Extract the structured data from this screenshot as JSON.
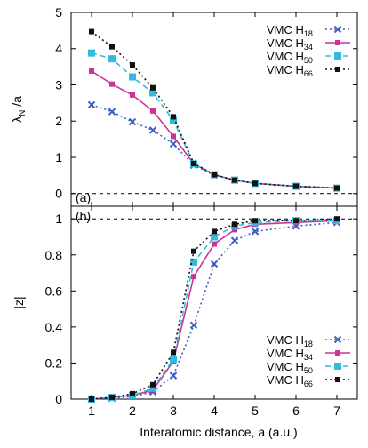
{
  "chart_data": [
    {
      "panel_label": "(a)",
      "type": "line",
      "ylabel_main": "λ",
      "ylabel_sub": "N",
      "ylabel_tail": " /a",
      "xlim": [
        0.5,
        7.5
      ],
      "ylim": [
        -0.35,
        5
      ],
      "yticks": [
        0,
        1,
        2,
        3,
        4,
        5
      ],
      "reference_line": 0,
      "legend_position": "top-right",
      "series": [
        {
          "name": "VMC H",
          "sub": "18",
          "color": "#3d5fc4",
          "marker": "x",
          "dash": "2,3",
          "x": [
            1,
            1.5,
            2,
            2.5,
            3,
            3.5,
            4,
            4.5,
            5,
            6,
            7
          ],
          "y": [
            2.45,
            2.26,
            1.98,
            1.75,
            1.37,
            0.78,
            0.51,
            0.37,
            0.28,
            0.2,
            0.15
          ]
        },
        {
          "name": "VMC H",
          "sub": "34",
          "color": "#cc3399",
          "marker": "square",
          "dash": "",
          "x": [
            1,
            1.5,
            2,
            2.5,
            3,
            3.5,
            4,
            4.5,
            5,
            6,
            7
          ],
          "y": [
            3.38,
            3.02,
            2.72,
            2.28,
            1.58,
            0.82,
            0.52,
            0.37,
            0.28,
            0.2,
            0.15
          ]
        },
        {
          "name": "VMC H",
          "sub": "50",
          "color": "#33bbdd",
          "marker": "square-open",
          "dash": "6,4",
          "x": [
            1,
            1.5,
            2,
            2.5,
            3,
            3.5,
            4,
            4.5,
            5,
            6,
            7
          ],
          "y": [
            3.88,
            3.72,
            3.22,
            2.78,
            2.02,
            0.82,
            0.52,
            0.37,
            0.28,
            0.2,
            0.15
          ]
        },
        {
          "name": "VMC H",
          "sub": "66",
          "color": "#111111",
          "marker": "square",
          "dash": "2,3",
          "x": [
            1,
            1.5,
            2,
            2.5,
            3,
            3.5,
            4,
            4.5,
            5,
            6,
            7
          ],
          "y": [
            4.47,
            4.05,
            3.55,
            2.92,
            2.12,
            0.83,
            0.52,
            0.37,
            0.28,
            0.2,
            0.15
          ]
        }
      ]
    },
    {
      "panel_label": "(b)",
      "type": "line",
      "xlabel": "Interatomic distance, a (a.u.)",
      "ylabel": "|z|",
      "xlim": [
        0.5,
        7.5
      ],
      "ylim": [
        0,
        1.07
      ],
      "xticks": [
        1,
        2,
        3,
        4,
        5,
        6,
        7
      ],
      "yticks": [
        "0",
        "0.2",
        "0.4",
        "0.6",
        "0.8",
        "1"
      ],
      "reference_line": 1,
      "legend_position": "bottom-right",
      "series": [
        {
          "name": "VMC H",
          "sub": "18",
          "color": "#3d5fc4",
          "marker": "x",
          "dash": "2,3",
          "x": [
            1,
            1.5,
            2,
            2.5,
            3,
            3.5,
            4,
            4.5,
            5,
            6,
            7
          ],
          "y": [
            0.0,
            0.005,
            0.015,
            0.04,
            0.13,
            0.41,
            0.75,
            0.88,
            0.93,
            0.96,
            0.98
          ]
        },
        {
          "name": "VMC H",
          "sub": "34",
          "color": "#cc3399",
          "marker": "square",
          "dash": "",
          "x": [
            1,
            1.5,
            2,
            2.5,
            3,
            3.5,
            4,
            4.5,
            5,
            6,
            7
          ],
          "y": [
            0.0,
            0.01,
            0.02,
            0.05,
            0.21,
            0.68,
            0.86,
            0.94,
            0.97,
            0.98,
            0.99
          ]
        },
        {
          "name": "VMC H",
          "sub": "50",
          "color": "#33bbdd",
          "marker": "square-open",
          "dash": "6,4",
          "x": [
            1,
            1.5,
            2,
            2.5,
            3,
            3.5,
            4,
            4.5,
            5,
            6,
            7
          ],
          "y": [
            0.0,
            0.01,
            0.02,
            0.06,
            0.22,
            0.76,
            0.9,
            0.96,
            0.98,
            0.99,
            0.99
          ]
        },
        {
          "name": "VMC H",
          "sub": "66",
          "color": "#111111",
          "marker": "square",
          "dash": "2,3",
          "x": [
            1,
            1.5,
            2,
            2.5,
            3,
            3.5,
            4,
            4.5,
            5,
            6,
            7
          ],
          "y": [
            0.0,
            0.01,
            0.03,
            0.08,
            0.26,
            0.82,
            0.93,
            0.97,
            0.99,
            0.99,
            1.0
          ]
        }
      ]
    }
  ]
}
